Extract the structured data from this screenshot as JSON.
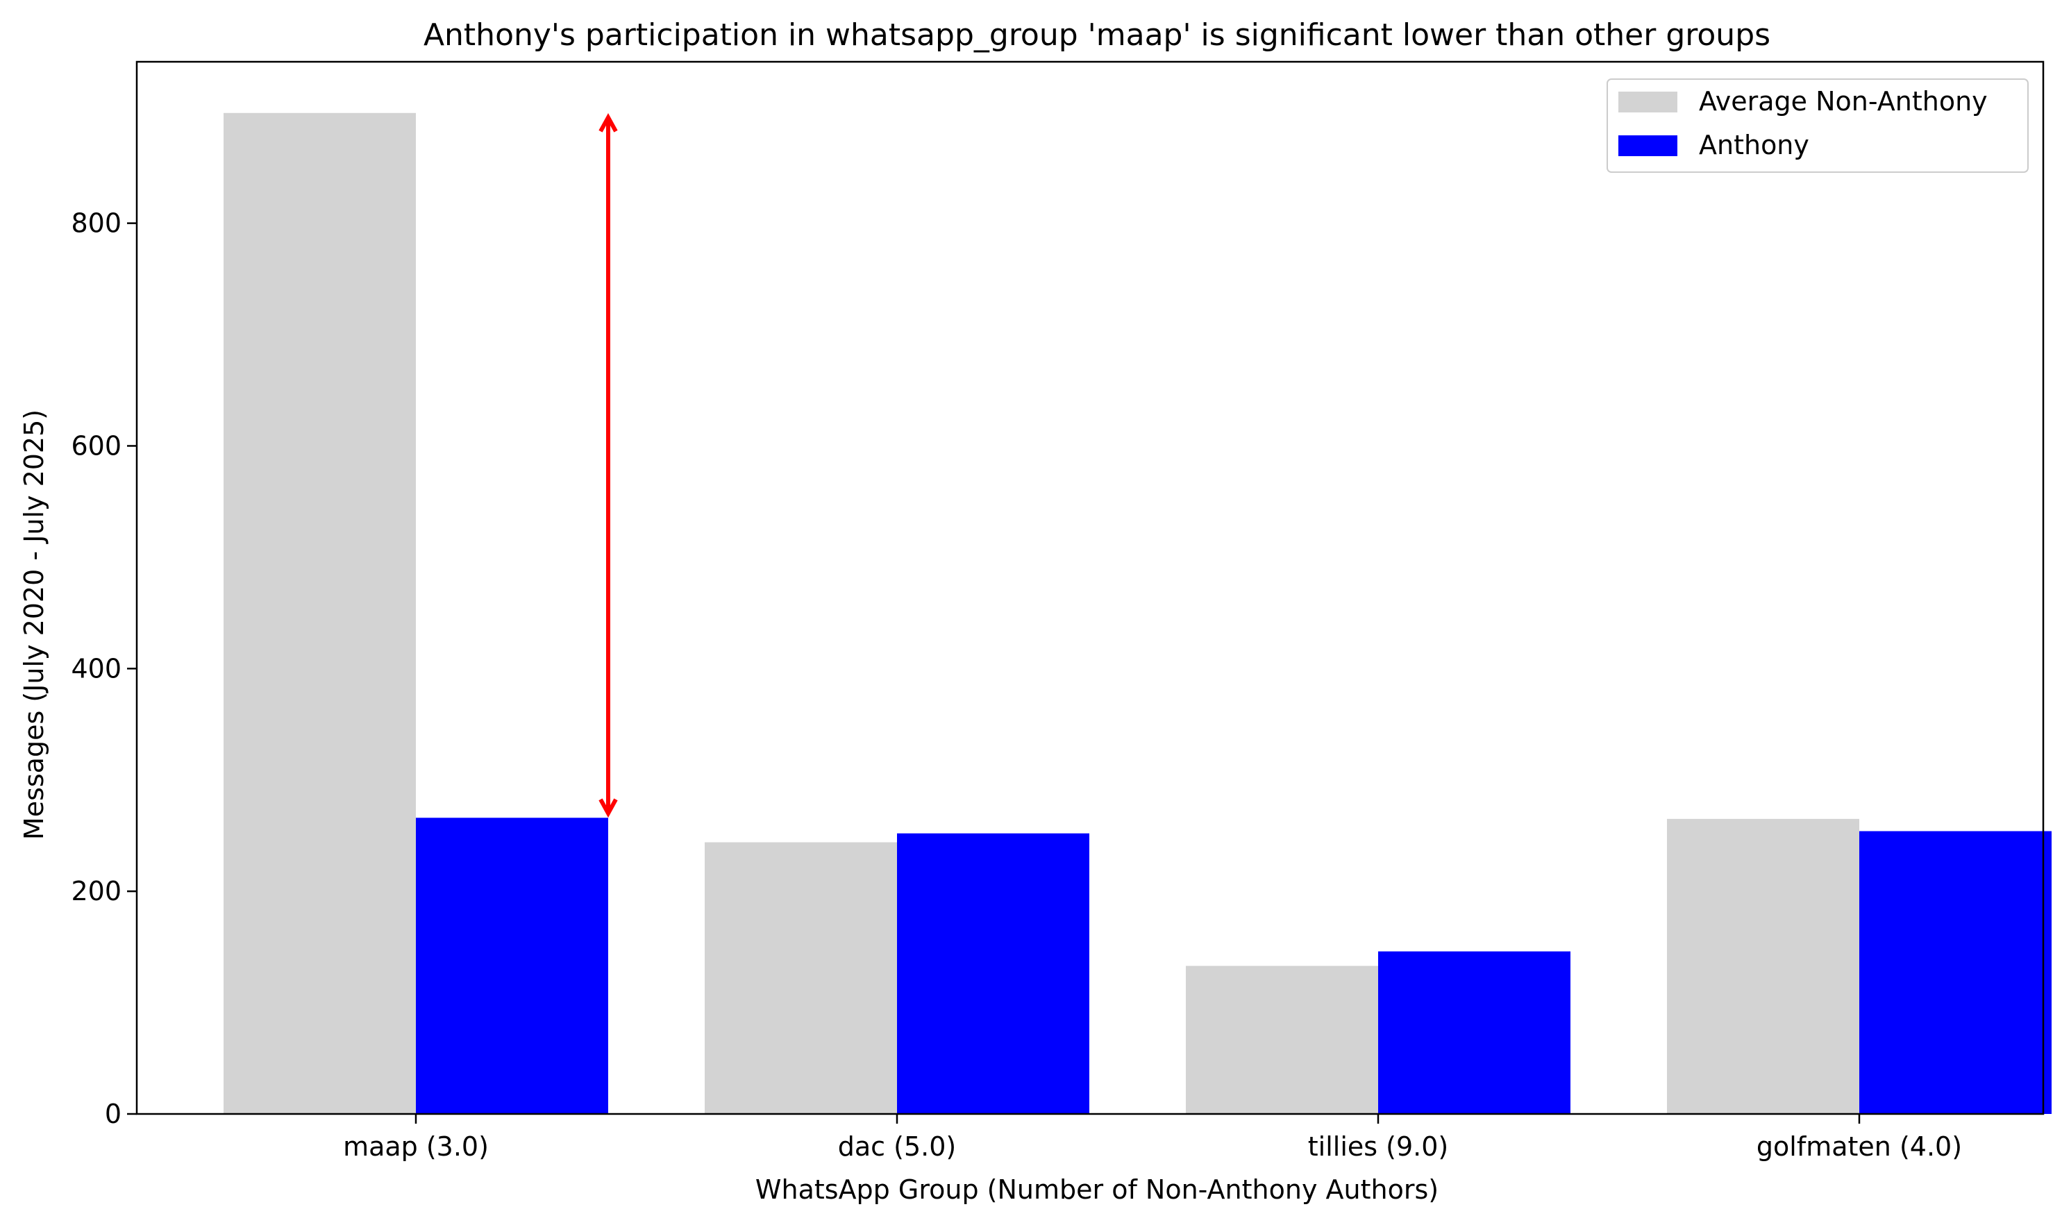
{
  "chart_data": {
    "type": "bar",
    "title": "Anthony's participation in whatsapp_group 'maap' is significant lower than other groups",
    "xlabel": "WhatsApp Group (Number of Non-Anthony Authors)",
    "ylabel": "Messages (July 2020 - July 2025)",
    "categories": [
      "maap (3.0)",
      "dac (5.0)",
      "tillies (9.0)",
      "golfmaten (4.0)"
    ],
    "series": [
      {
        "name": "Average Non-Anthony",
        "color": "#d3d3d3",
        "values": [
          899,
          244,
          133,
          265
        ]
      },
      {
        "name": "Anthony",
        "color": "#0000ff",
        "values": [
          266,
          252,
          146,
          254
        ]
      }
    ],
    "ylim": [
      0,
      945
    ],
    "yticks": [
      0,
      200,
      400,
      600,
      800
    ],
    "grid": false,
    "legend": "top-right",
    "annotation": {
      "type": "double-arrow",
      "color": "#ff0000",
      "category": "maap (3.0)",
      "from": 270,
      "to": 895
    }
  }
}
